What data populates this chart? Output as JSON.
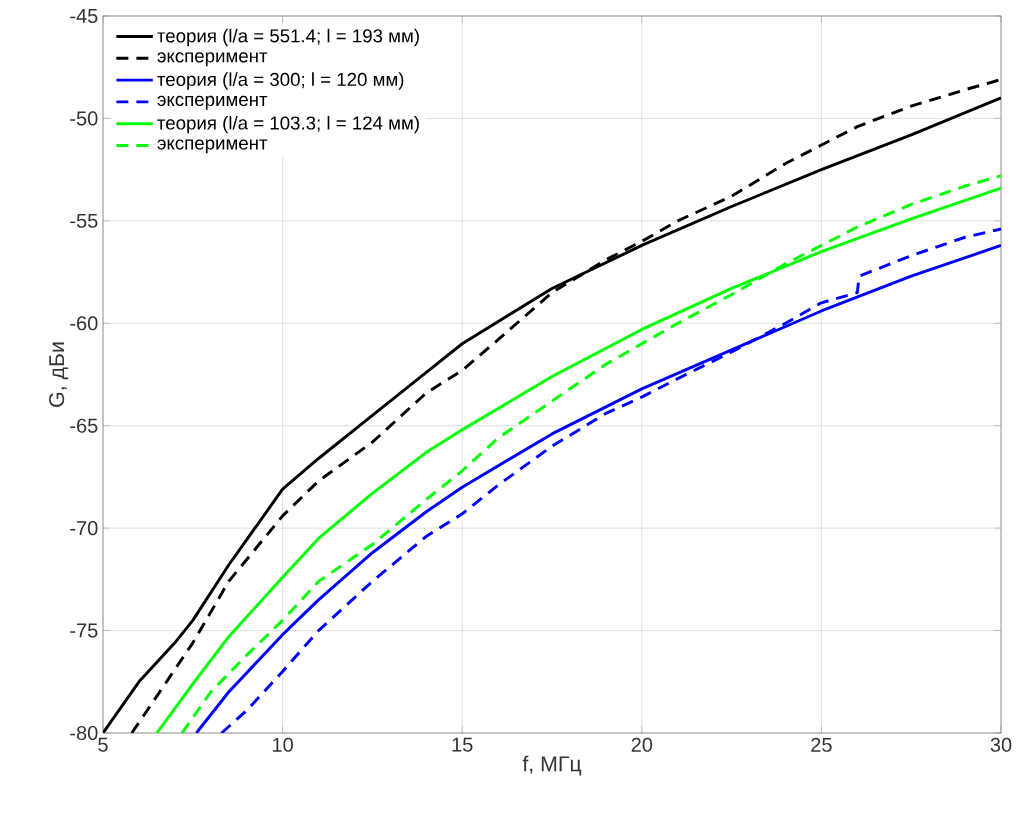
{
  "chart_data": {
    "type": "line",
    "xlabel": "f, МГц",
    "ylabel": "G, дБи",
    "xlim": [
      5,
      30
    ],
    "ylim": [
      -80,
      -45
    ],
    "xticks": [
      5,
      10,
      15,
      20,
      25,
      30
    ],
    "yticks": [
      -80,
      -75,
      -70,
      -65,
      -60,
      -55,
      -50,
      -45
    ],
    "grid": true,
    "legend": "top left",
    "marker": "none",
    "series": [
      {
        "name": "теория (l/a = 551.4; l = 193 мм)",
        "color": "#000000",
        "line_style": "solid",
        "x": [
          5,
          6,
          7,
          7.5,
          8.5,
          10,
          11,
          12.5,
          14,
          15,
          17.5,
          20,
          22.5,
          25,
          27.5,
          30
        ],
        "values": [
          -80,
          -77.5,
          -75.6,
          -74.5,
          -71.8,
          -68.1,
          -66.6,
          -64.5,
          -62.4,
          -61.0,
          -58.3,
          -56.2,
          -54.3,
          -52.5,
          -50.8,
          -49.0
        ]
      },
      {
        "name": "эксперимент",
        "color": "#000000",
        "line_style": "dashed",
        "x": [
          5.8,
          6.5,
          7.5,
          8.5,
          10,
          11,
          12.5,
          14,
          15,
          16,
          17.5,
          19,
          20,
          21,
          22.5,
          24,
          25,
          26,
          27.5,
          29,
          30
        ],
        "values": [
          -80,
          -78.2,
          -75.6,
          -72.6,
          -69.4,
          -67.7,
          -65.8,
          -63.4,
          -62.3,
          -60.8,
          -58.5,
          -56.9,
          -56.0,
          -55.0,
          -53.8,
          -52.2,
          -51.3,
          -50.4,
          -49.4,
          -48.6,
          -48.1
        ]
      },
      {
        "name": "теория (l/a = 300;  l = 120 мм)",
        "color": "#0000ff",
        "line_style": "solid",
        "x": [
          7.6,
          8.5,
          10,
          11,
          12.5,
          14,
          15,
          17.5,
          20,
          22.5,
          25,
          27.5,
          30
        ],
        "values": [
          -80,
          -78.0,
          -75.2,
          -73.5,
          -71.2,
          -69.2,
          -68.0,
          -65.4,
          -63.2,
          -61.3,
          -59.4,
          -57.7,
          -56.2
        ]
      },
      {
        "name": "эксперимент",
        "color": "#0000ff",
        "line_style": "dashed",
        "x": [
          8.3,
          9,
          10,
          11,
          12.5,
          14,
          15,
          16,
          17.5,
          19,
          20,
          21,
          22.5,
          24,
          25,
          26,
          26.05,
          27.5,
          29,
          30
        ],
        "values": [
          -80,
          -78.9,
          -77.0,
          -75.0,
          -72.6,
          -70.4,
          -69.3,
          -67.9,
          -66.0,
          -64.4,
          -63.6,
          -62.7,
          -61.4,
          -60.0,
          -59.0,
          -58.5,
          -57.7,
          -56.7,
          -55.8,
          -55.4
        ]
      },
      {
        "name": "теория (l/a = 103.3;  l = 124 мм)",
        "color": "#00ff00",
        "line_style": "solid",
        "x": [
          6.5,
          7.5,
          8.5,
          10,
          11,
          12.5,
          14,
          15,
          17.5,
          20,
          22.5,
          25,
          27.5,
          30
        ],
        "values": [
          -80,
          -77.6,
          -75.3,
          -72.4,
          -70.5,
          -68.3,
          -66.3,
          -65.2,
          -62.6,
          -60.3,
          -58.3,
          -56.5,
          -54.9,
          -53.4
        ]
      },
      {
        "name": "эксперимент",
        "color": "#00ff00",
        "line_style": "dashed",
        "x": [
          7.2,
          8,
          9,
          10,
          11,
          12.5,
          14,
          15,
          16,
          17.5,
          19,
          20,
          21,
          22.5,
          24,
          25,
          26,
          27.5,
          29,
          30
        ],
        "values": [
          -80,
          -78.0,
          -76.2,
          -74.5,
          -72.6,
          -70.8,
          -68.6,
          -67.2,
          -65.6,
          -63.8,
          -62.0,
          -61.0,
          -60.0,
          -58.6,
          -57.1,
          -56.2,
          -55.3,
          -54.2,
          -53.3,
          -52.8
        ]
      }
    ]
  }
}
